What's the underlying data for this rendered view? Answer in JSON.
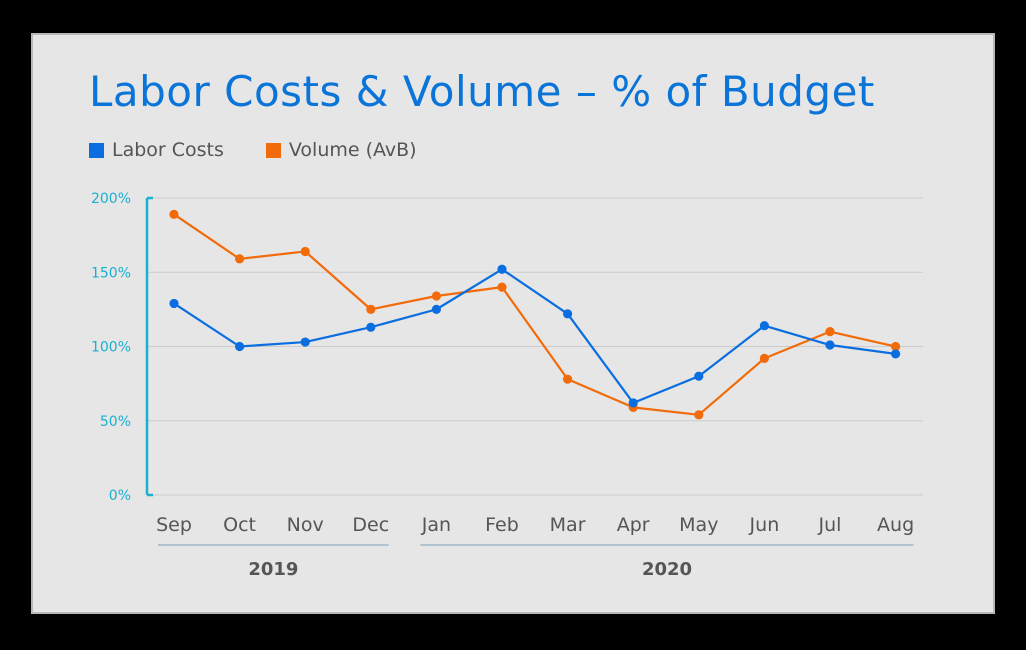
{
  "chart_data": {
    "type": "line",
    "title": "Labor Costs & Volume – % of Budget",
    "categories": [
      "Sep",
      "Oct",
      "Nov",
      "Dec",
      "Jan",
      "Feb",
      "Mar",
      "Apr",
      "May",
      "Jun",
      "Jul",
      "Aug"
    ],
    "groups": [
      {
        "label": "2019",
        "from": 0,
        "to": 3
      },
      {
        "label": "2020",
        "from": 4,
        "to": 11
      }
    ],
    "series": [
      {
        "name": "Labor Costs",
        "color": "#0a6ee0",
        "values": [
          129,
          100,
          103,
          113,
          125,
          152,
          122,
          62,
          80,
          114,
          101,
          95
        ]
      },
      {
        "name": "Volume (AvB)",
        "color": "#f26b0a",
        "values": [
          189,
          159,
          164,
          125,
          134,
          140,
          78,
          59,
          54,
          92,
          110,
          100
        ]
      }
    ],
    "yticks": [
      {
        "value": 0,
        "label": "0%"
      },
      {
        "value": 50,
        "label": "50%"
      },
      {
        "value": 100,
        "label": "100%"
      },
      {
        "value": 150,
        "label": "150%"
      },
      {
        "value": 200,
        "label": "200%"
      }
    ],
    "ylim": [
      0,
      200
    ],
    "grid": true,
    "legend_position": "top-left",
    "axis_color": "#1ab0d0",
    "grid_color": "#cccccc",
    "text_color": "#555555",
    "title_color": "#0a74d8"
  }
}
